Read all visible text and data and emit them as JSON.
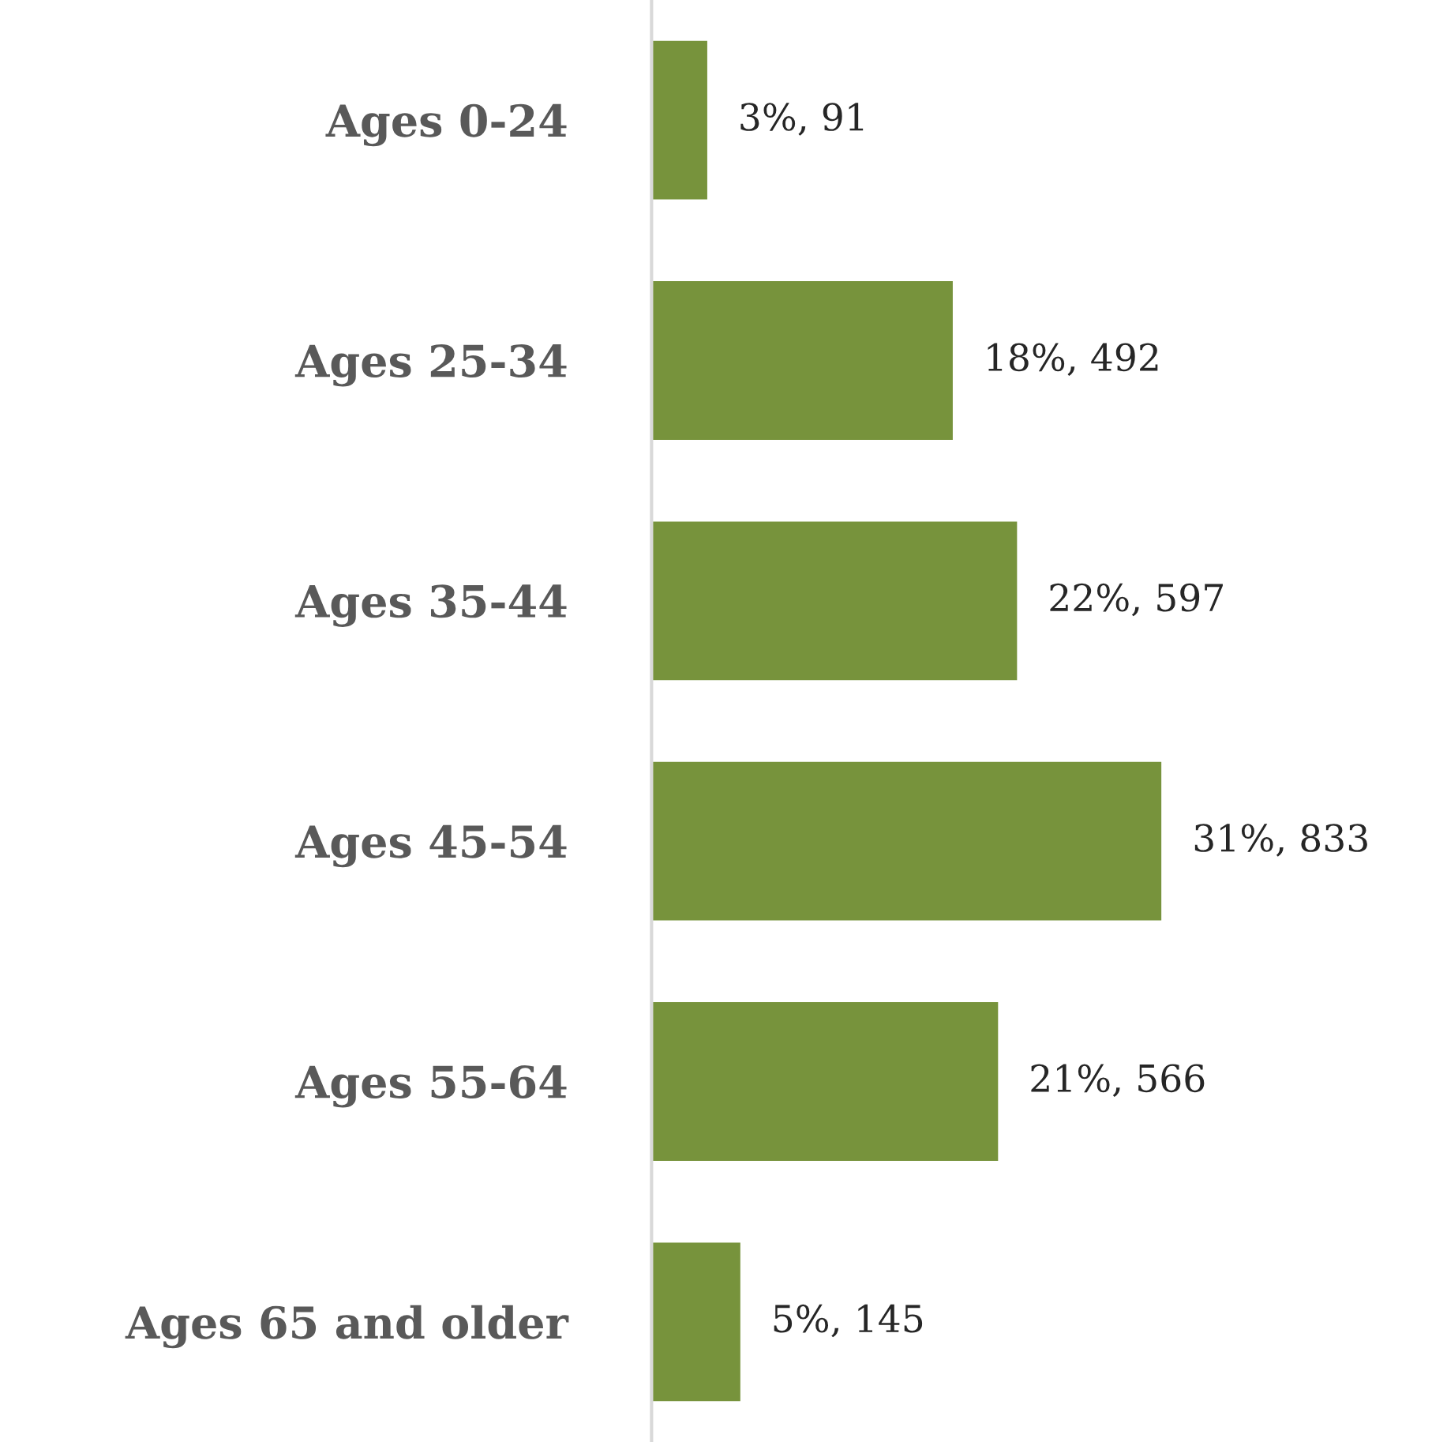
{
  "chart_data": {
    "type": "bar",
    "orientation": "horizontal",
    "categories": [
      "Ages 0-24",
      "Ages 25-34",
      "Ages 35-44",
      "Ages 45-54",
      "Ages 55-64",
      "Ages 65 and older"
    ],
    "values": [
      91,
      492,
      597,
      833,
      566,
      145
    ],
    "value_labels": [
      "3%, 91",
      "18%, 492",
      "22%, 597",
      "31%, 833",
      "21%, 566",
      "5%, 145"
    ],
    "color": "#77933c",
    "tick_labels": "y",
    "grid": false,
    "legend": false
  }
}
